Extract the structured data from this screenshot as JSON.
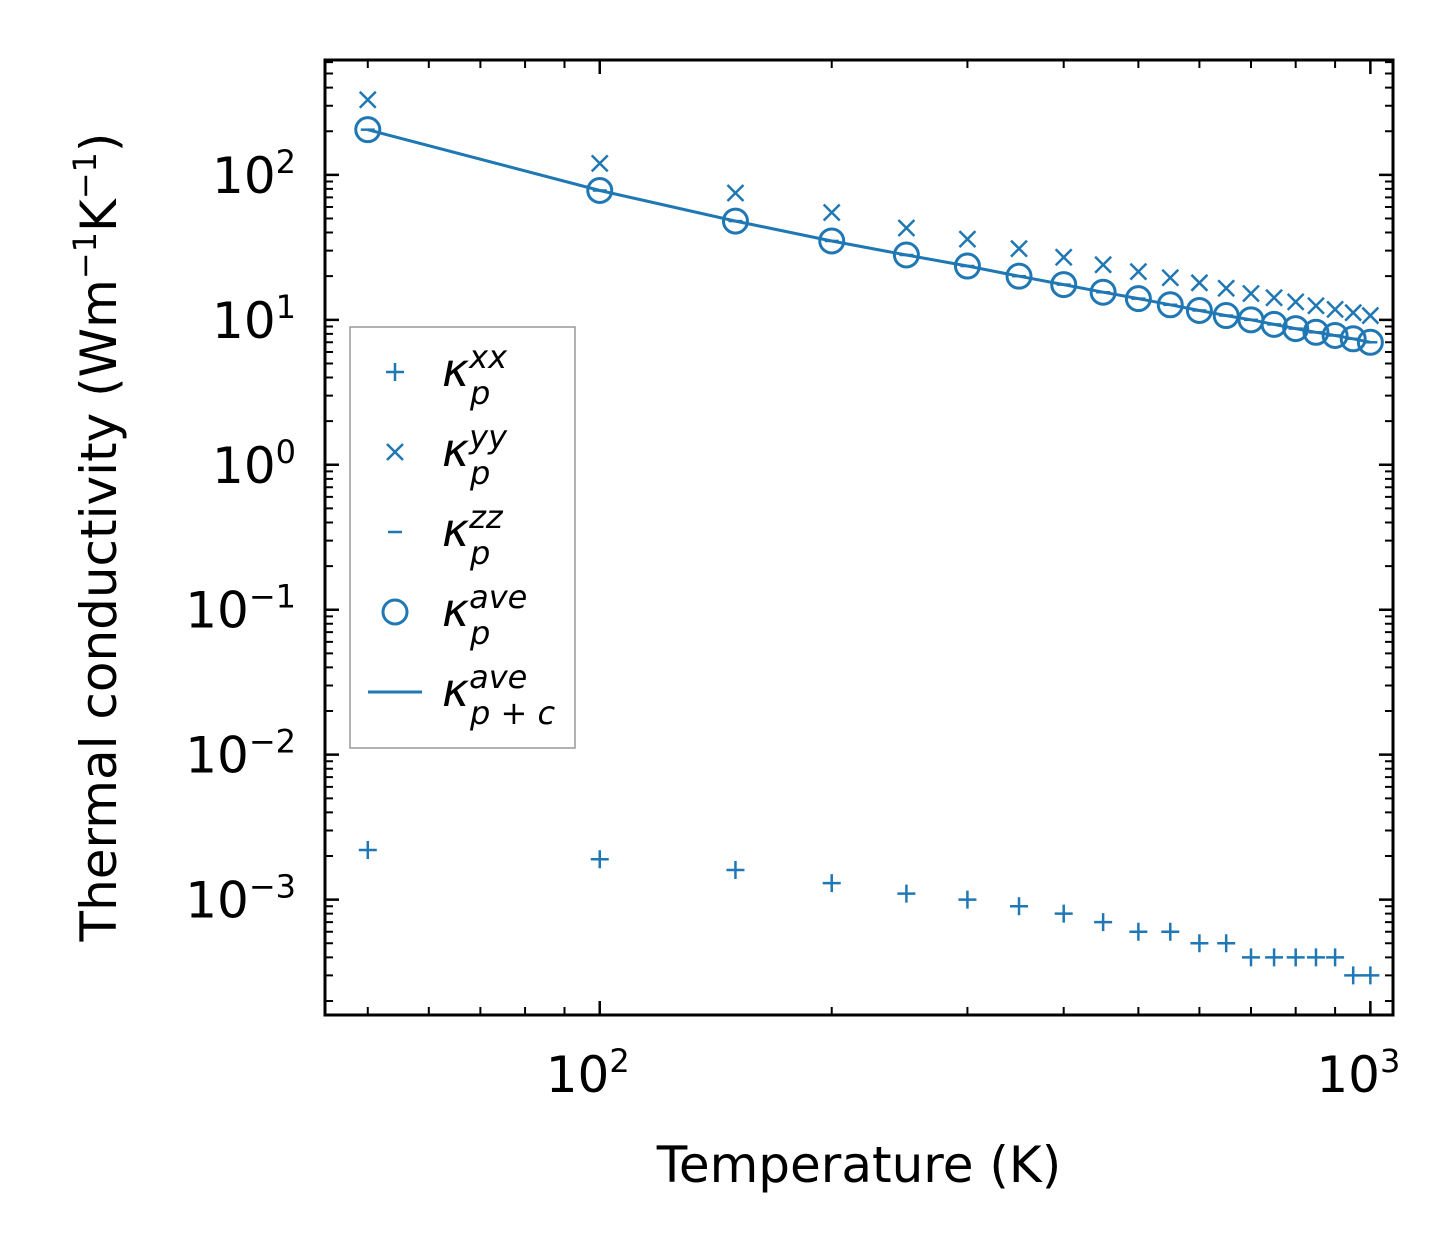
{
  "chart_data": {
    "type": "scatter",
    "scale": "log-log",
    "xlabel": "Temperature (K)",
    "ylabel": "Thermal conductivity (Wm⁻¹K⁻¹)",
    "ylabel_parts": {
      "pre": "Thermal conductivity (Wm",
      "exp1": "−1",
      "mid": "K",
      "exp2": "−1",
      "post": ")"
    },
    "xlim": [
      44,
      1070
    ],
    "ylim": [
      0.00016,
      620
    ],
    "x_ticks": [
      {
        "value": 100,
        "base": "10",
        "exp": "2"
      },
      {
        "value": 1000,
        "base": "10",
        "exp": "3"
      }
    ],
    "y_ticks": [
      {
        "value": 100,
        "base": "10",
        "exp": "2"
      },
      {
        "value": 10,
        "base": "10",
        "exp": "1"
      },
      {
        "value": 1,
        "base": "10",
        "exp": "0"
      },
      {
        "value": 0.1,
        "base": "10",
        "exp": "−1"
      },
      {
        "value": 0.01,
        "base": "10",
        "exp": "−2"
      },
      {
        "value": 0.001,
        "base": "10",
        "exp": "−3"
      }
    ],
    "color": "#1f77b4",
    "temperatures": [
      50,
      100,
      150,
      200,
      250,
      300,
      350,
      400,
      450,
      500,
      550,
      600,
      650,
      700,
      750,
      800,
      850,
      900,
      950,
      1000
    ],
    "series": [
      {
        "name": "kappa_p_xx",
        "symbol": "κ",
        "sub": "p",
        "sup": "xx",
        "marker": "plus",
        "values": [
          0.0022,
          0.0019,
          0.0016,
          0.0013,
          0.0011,
          0.001,
          0.0009,
          0.0008,
          0.0007,
          0.0006,
          0.0006,
          0.0005,
          0.0005,
          0.0004,
          0.0004,
          0.0004,
          0.0004,
          0.0004,
          0.0003,
          0.0003
        ]
      },
      {
        "name": "kappa_p_yy",
        "symbol": "κ",
        "sub": "p",
        "sup": "yy",
        "marker": "x",
        "values": [
          330,
          120,
          75,
          55,
          43,
          36,
          31,
          27,
          24,
          21.5,
          19.5,
          18,
          16.5,
          15.2,
          14.2,
          13.3,
          12.5,
          11.8,
          11.2,
          10.7
        ]
      },
      {
        "name": "kappa_p_zz",
        "symbol": "κ",
        "sub": "p",
        "sup": "zz",
        "marker": "hline",
        "values": [
          205,
          78,
          48,
          35,
          28,
          23.5,
          20,
          17.5,
          15.5,
          14,
          12.7,
          11.6,
          10.7,
          10,
          9.3,
          8.7,
          8.2,
          7.8,
          7.4,
          7
        ]
      },
      {
        "name": "kappa_p_ave",
        "symbol": "κ",
        "sub": "p",
        "sup": "ave",
        "marker": "circle",
        "values": [
          205,
          78,
          48,
          35,
          28,
          23.5,
          20,
          17.5,
          15.5,
          14,
          12.7,
          11.6,
          10.7,
          10,
          9.3,
          8.7,
          8.2,
          7.8,
          7.4,
          7
        ]
      },
      {
        "name": "kappa_pc_ave",
        "symbol": "κ",
        "sub": "p + c",
        "sup": "ave",
        "marker": "line",
        "values": [
          205,
          78,
          48,
          35,
          28,
          23.5,
          20,
          17.5,
          15.5,
          14,
          12.7,
          11.6,
          10.7,
          10,
          9.3,
          8.7,
          8.2,
          7.8,
          7.4,
          7
        ]
      }
    ],
    "legend_position": "center-left",
    "grid": false
  }
}
